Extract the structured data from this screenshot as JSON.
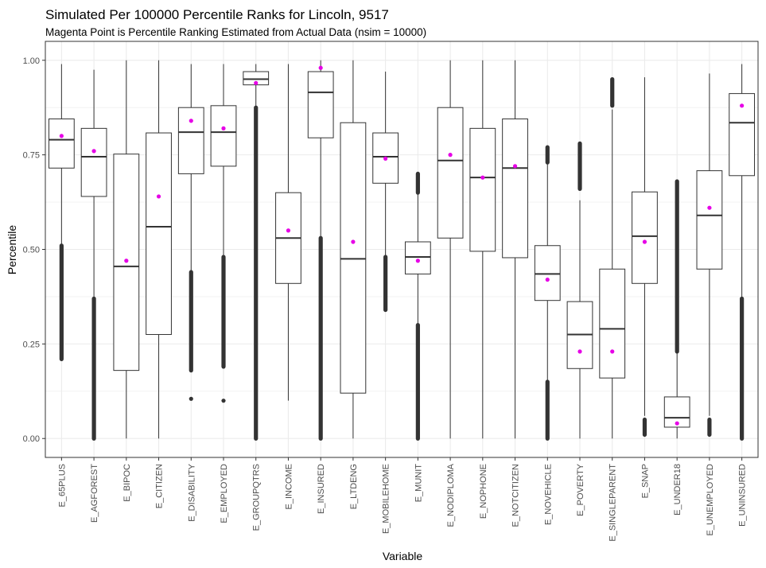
{
  "chart_data": {
    "type": "box",
    "title": "Simulated Per 100000 Percentile Ranks for Lincoln, 9517",
    "subtitle": "Magenta Point is Percentile Ranking Estimated from Actual Data (nsim = 10000)",
    "xlabel": "Variable",
    "ylabel": "Percentile",
    "ylim": [
      -0.05,
      1.05
    ],
    "yticks": [
      0.0,
      0.25,
      0.5,
      0.75,
      1.0
    ],
    "ytick_labels": [
      "0.00",
      "0.25",
      "0.50",
      "0.75",
      "1.00"
    ],
    "grid": true,
    "colors": {
      "box": "#333333",
      "outlier": "#333333",
      "actual_point": "#e600e6",
      "grid": "#ebebeb",
      "panel_border": "#333333"
    },
    "categories": [
      "E_65PLUS",
      "E_AGFOREST",
      "E_BIPOC",
      "E_CITIZEN",
      "E_DISABILITY",
      "E_EMPLOYED",
      "E_GROUPQTRS",
      "E_INCOME",
      "E_INSURED",
      "E_LTDENG",
      "E_MOBILEHOME",
      "E_MUNIT",
      "E_NODIPLOMA",
      "E_NOPHONE",
      "E_NOTCITIZEN",
      "E_NOVEHICLE",
      "E_POVERTY",
      "E_SINGLEPARENT",
      "E_SNAP",
      "E_UNDER18",
      "E_UNEMPLOYED",
      "E_UNINSURED"
    ],
    "boxes": [
      {
        "min": 0.51,
        "q1": 0.715,
        "median": 0.79,
        "q3": 0.845,
        "max": 0.99,
        "outliers": [
          [
            0.21,
            0.51
          ]
        ],
        "actual": 0.8
      },
      {
        "min": 0.37,
        "q1": 0.64,
        "median": 0.745,
        "q3": 0.82,
        "max": 0.975,
        "outliers": [
          [
            0.0,
            0.37
          ]
        ],
        "actual": 0.76
      },
      {
        "min": 0.0,
        "q1": 0.18,
        "median": 0.455,
        "q3": 0.752,
        "max": 1.0,
        "outliers": [],
        "actual": 0.47
      },
      {
        "min": 0.0,
        "q1": 0.275,
        "median": 0.56,
        "q3": 0.808,
        "max": 1.0,
        "outliers": [],
        "actual": 0.64
      },
      {
        "min": 0.44,
        "q1": 0.7,
        "median": 0.81,
        "q3": 0.875,
        "max": 0.99,
        "outliers": [
          [
            0.18,
            0.44
          ],
          [
            0.105,
            0.105
          ]
        ],
        "actual": 0.84
      },
      {
        "min": 0.48,
        "q1": 0.72,
        "median": 0.81,
        "q3": 0.88,
        "max": 0.99,
        "outliers": [
          [
            0.19,
            0.48
          ],
          [
            0.1,
            0.1
          ]
        ],
        "actual": 0.82
      },
      {
        "min": 0.875,
        "q1": 0.935,
        "median": 0.95,
        "q3": 0.97,
        "max": 0.99,
        "outliers": [
          [
            0.0,
            0.875
          ]
        ],
        "actual": 0.94
      },
      {
        "min": 0.1,
        "q1": 0.41,
        "median": 0.53,
        "q3": 0.65,
        "max": 0.99,
        "outliers": [],
        "actual": 0.55
      },
      {
        "min": 0.53,
        "q1": 0.795,
        "median": 0.915,
        "q3": 0.97,
        "max": 1.0,
        "outliers": [
          [
            0.0,
            0.53
          ]
        ],
        "actual": 0.98
      },
      {
        "min": 0.0,
        "q1": 0.12,
        "median": 0.475,
        "q3": 0.835,
        "max": 1.0,
        "outliers": [],
        "actual": 0.52
      },
      {
        "min": 0.48,
        "q1": 0.675,
        "median": 0.745,
        "q3": 0.808,
        "max": 0.97,
        "outliers": [
          [
            0.34,
            0.48
          ]
        ],
        "actual": 0.74
      },
      {
        "min": 0.3,
        "q1": 0.435,
        "median": 0.48,
        "q3": 0.52,
        "max": 0.69,
        "outliers": [
          [
            0.0,
            0.3
          ],
          [
            0.65,
            0.7
          ]
        ],
        "actual": 0.47
      },
      {
        "min": 0.0,
        "q1": 0.53,
        "median": 0.735,
        "q3": 0.875,
        "max": 1.0,
        "outliers": [],
        "actual": 0.75
      },
      {
        "min": 0.0,
        "q1": 0.495,
        "median": 0.69,
        "q3": 0.82,
        "max": 1.0,
        "outliers": [],
        "actual": 0.69
      },
      {
        "min": 0.0,
        "q1": 0.478,
        "median": 0.715,
        "q3": 0.845,
        "max": 1.0,
        "outliers": [],
        "actual": 0.72
      },
      {
        "min": 0.15,
        "q1": 0.365,
        "median": 0.435,
        "q3": 0.51,
        "max": 0.73,
        "outliers": [
          [
            0.0,
            0.15
          ],
          [
            0.73,
            0.77
          ]
        ],
        "actual": 0.42
      },
      {
        "min": 0.0,
        "q1": 0.185,
        "median": 0.275,
        "q3": 0.362,
        "max": 0.63,
        "outliers": [
          [
            0.66,
            0.78
          ]
        ],
        "actual": 0.23
      },
      {
        "min": 0.0,
        "q1": 0.16,
        "median": 0.29,
        "q3": 0.448,
        "max": 0.87,
        "outliers": [
          [
            0.88,
            0.95
          ]
        ],
        "actual": 0.23
      },
      {
        "min": 0.06,
        "q1": 0.41,
        "median": 0.535,
        "q3": 0.652,
        "max": 0.955,
        "outliers": [
          [
            0.01,
            0.05
          ]
        ],
        "actual": 0.52
      },
      {
        "min": 0.0,
        "q1": 0.03,
        "median": 0.055,
        "q3": 0.11,
        "max": 0.23,
        "outliers": [
          [
            0.23,
            0.68
          ]
        ],
        "actual": 0.04
      },
      {
        "min": 0.06,
        "q1": 0.448,
        "median": 0.59,
        "q3": 0.708,
        "max": 0.965,
        "outliers": [
          [
            0.01,
            0.05
          ]
        ],
        "actual": 0.61
      },
      {
        "min": 0.37,
        "q1": 0.695,
        "median": 0.835,
        "q3": 0.912,
        "max": 0.99,
        "outliers": [
          [
            0.0,
            0.37
          ]
        ],
        "actual": 0.88
      }
    ]
  }
}
